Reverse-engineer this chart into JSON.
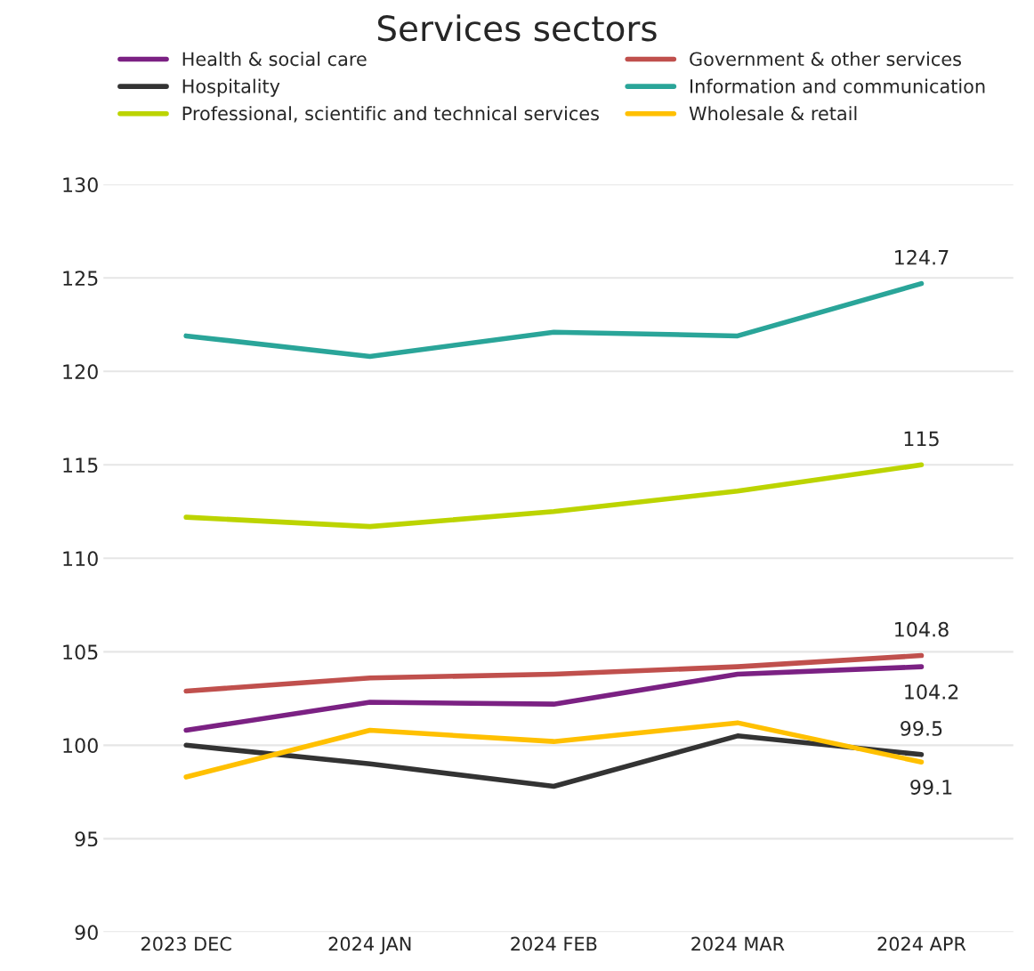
{
  "chart_data": {
    "type": "line",
    "title": "Services sectors",
    "categories": [
      "2023 DEC",
      "2024 JAN",
      "2024 FEB",
      "2024 MAR",
      "2024 APR"
    ],
    "series": [
      {
        "name": "Health & social care",
        "color": "#7b2183",
        "values": [
          100.8,
          102.3,
          102.2,
          103.8,
          104.2
        ],
        "value_labels": [
          null,
          null,
          null,
          null,
          "104.2"
        ]
      },
      {
        "name": "Hospitality",
        "color": "#333333",
        "values": [
          100.0,
          99.0,
          97.8,
          100.5,
          99.5
        ],
        "value_labels": [
          null,
          null,
          null,
          null,
          "99.5"
        ]
      },
      {
        "name": "Professional, scientific and technical services",
        "color": "#bcd400",
        "values": [
          112.2,
          111.7,
          112.5,
          113.6,
          115
        ],
        "value_labels": [
          null,
          null,
          null,
          null,
          "115"
        ]
      },
      {
        "name": "Government & other services",
        "color": "#c0504d",
        "values": [
          102.9,
          103.6,
          103.8,
          104.2,
          104.8
        ],
        "value_labels": [
          null,
          null,
          null,
          null,
          "104.8"
        ]
      },
      {
        "name": "Information and communication",
        "color": "#2aa599",
        "values": [
          121.9,
          120.8,
          122.1,
          121.9,
          124.7
        ],
        "value_labels": [
          null,
          null,
          null,
          null,
          "124.7"
        ]
      },
      {
        "name": "Wholesale & retail",
        "color": "#ffc000",
        "values": [
          98.3,
          100.8,
          100.2,
          101.2,
          99.1
        ],
        "value_labels": [
          null,
          null,
          null,
          null,
          "99.1"
        ]
      }
    ],
    "ylim": [
      90,
      130
    ],
    "yticks": [
      90,
      95,
      100,
      105,
      110,
      115,
      120,
      125,
      130
    ],
    "grid": "y",
    "legend": "top",
    "marker": "none",
    "line_style": "solid"
  }
}
